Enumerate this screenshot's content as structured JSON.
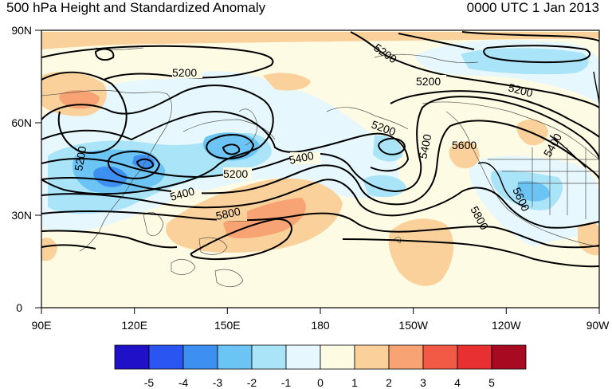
{
  "header": {
    "title_left": "500 hPa Height and Standardized Anomaly",
    "title_right": "0000 UTC 1 Jan 2013"
  },
  "map": {
    "lat_labels": [
      "90N",
      "60N",
      "30N",
      "0"
    ],
    "lon_labels": [
      "90E",
      "120E",
      "150E",
      "180",
      "150W",
      "120W",
      "90W"
    ],
    "contour_labels": [
      "5200",
      "5200",
      "5200",
      "5200",
      "5200",
      "5200",
      "5400",
      "5400",
      "5400",
      "5400",
      "5600",
      "5600",
      "5800",
      "5800",
      "5200"
    ],
    "colors": {
      "neg5": "#2010c8",
      "neg4": "#2b55f0",
      "neg3": "#3d8ff2",
      "neg2": "#6cc4f5",
      "neg1": "#a9e4f8",
      "neg0": "#e6f8fd",
      "pos0": "#fefbe4",
      "pos1": "#fad19a",
      "pos2": "#f7a374",
      "pos3": "#f25a45",
      "pos4": "#e83033",
      "pos5": "#a80a22"
    }
  },
  "colorbar": {
    "labels": [
      "-5",
      "-4",
      "-3",
      "-2",
      "-1",
      "0",
      "1",
      "2",
      "3",
      "4",
      "5"
    ],
    "bins": [
      "#2010c8",
      "#2b55f0",
      "#3d8ff2",
      "#6cc4f5",
      "#a9e4f8",
      "#e6f8fd",
      "#fefbe4",
      "#fad19a",
      "#f7a374",
      "#f25a45",
      "#e83033",
      "#a80a22"
    ]
  }
}
